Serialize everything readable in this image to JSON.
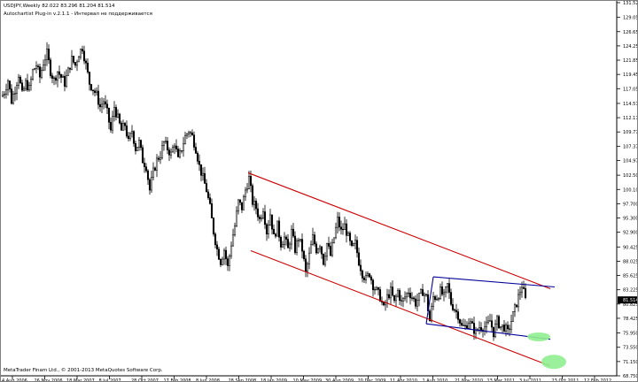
{
  "header": {
    "symbol_line": "USDJPY,Weekly  82.022 83.296 81.204 81.514",
    "indicator_line": "Autochartist Plug-in v.2.1.1 - Интервал не поддерживается"
  },
  "footer": {
    "copyright": "MetaTrader Finam Ltd., © 2001-2013 MetaQuotes Software Corp."
  },
  "current_price": "81.514",
  "colors": {
    "background": "#ffffff",
    "bull_candle": "#ffffff",
    "bear_candle": "#000000",
    "channel_lines": "#cc0000",
    "triangle_lines": "#000099",
    "target_ellipses": "#90ee90",
    "price_tag_bg": "#000000",
    "price_tag_fg": "#ffffff"
  },
  "chart_data": {
    "type": "candlestick",
    "title": "USDJPY,Weekly",
    "y_ticks": [
      "131.525",
      "129.050",
      "126.650",
      "124.250",
      "121.850",
      "119.450",
      "117.050",
      "114.575",
      "112.175",
      "109.775",
      "107.375",
      "104.975",
      "102.500",
      "100.100",
      "97.700",
      "95.300",
      "92.900",
      "90.425",
      "88.025",
      "85.625",
      "83.225",
      "80.825",
      "78.425",
      "75.950",
      "73.550",
      "71.150",
      "68.750"
    ],
    "ylim": [
      68.75,
      131.525
    ],
    "x_ticks": [
      "4 Aug 2006",
      "26 Nov 2006",
      "18 Mar 2007",
      "8 Jul 2007",
      "28 Oct 2007",
      "17 Feb 2008",
      "8 Jun 2008",
      "28 Sep 2008",
      "18 Jan 2009",
      "10 May 2009",
      "30 Aug 2009",
      "20 Dec 2009",
      "11 Apr 2010",
      "1 Aug 2010",
      "21 Nov 2010",
      "13 Mar 2011",
      "3 Jul 2011",
      "23 Oct 2011",
      "12 Feb 2012"
    ],
    "price_path": [
      [
        0,
        115.5
      ],
      [
        4,
        116.5
      ],
      [
        8,
        118.5
      ],
      [
        12,
        115
      ],
      [
        16,
        117
      ],
      [
        20,
        119.5
      ],
      [
        24,
        116
      ],
      [
        28,
        118
      ],
      [
        32,
        117
      ],
      [
        36,
        120
      ],
      [
        40,
        121
      ],
      [
        44,
        119
      ],
      [
        48,
        121.5
      ],
      [
        52,
        123
      ],
      [
        56,
        120
      ],
      [
        60,
        118.5
      ],
      [
        64,
        120
      ],
      [
        68,
        119
      ],
      [
        72,
        118
      ],
      [
        76,
        120
      ],
      [
        80,
        122
      ],
      [
        84,
        121
      ],
      [
        88,
        123
      ],
      [
        92,
        124
      ],
      [
        96,
        121
      ],
      [
        100,
        118
      ],
      [
        104,
        117
      ],
      [
        108,
        116
      ],
      [
        112,
        114
      ],
      [
        116,
        115
      ],
      [
        120,
        113
      ],
      [
        124,
        110
      ],
      [
        128,
        114
      ],
      [
        132,
        112
      ],
      [
        136,
        110
      ],
      [
        140,
        111
      ],
      [
        144,
        108
      ],
      [
        148,
        110
      ],
      [
        152,
        107
      ],
      [
        156,
        108
      ],
      [
        160,
        105
      ],
      [
        164,
        104
      ],
      [
        168,
        100
      ],
      [
        172,
        103
      ],
      [
        176,
        105
      ],
      [
        180,
        106
      ],
      [
        184,
        108
      ],
      [
        188,
        107
      ],
      [
        192,
        106
      ],
      [
        196,
        108
      ],
      [
        200,
        105
      ],
      [
        204,
        107
      ],
      [
        208,
        109
      ],
      [
        212,
        110
      ],
      [
        216,
        109
      ],
      [
        220,
        107
      ],
      [
        224,
        104
      ],
      [
        228,
        102
      ],
      [
        232,
        100
      ],
      [
        236,
        97
      ],
      [
        240,
        93
      ],
      [
        244,
        90
      ],
      [
        248,
        88
      ],
      [
        252,
        90
      ],
      [
        256,
        87
      ],
      [
        260,
        91
      ],
      [
        264,
        94
      ],
      [
        268,
        98
      ],
      [
        272,
        97
      ],
      [
        276,
        100
      ],
      [
        280,
        102
      ],
      [
        284,
        98
      ],
      [
        288,
        97
      ],
      [
        292,
        95
      ],
      [
        296,
        97
      ],
      [
        300,
        93
      ],
      [
        304,
        96
      ],
      [
        308,
        92
      ],
      [
        312,
        94
      ],
      [
        316,
        91
      ],
      [
        320,
        92
      ],
      [
        324,
        90
      ],
      [
        328,
        93
      ],
      [
        332,
        90
      ],
      [
        336,
        92
      ],
      [
        340,
        90
      ],
      [
        344,
        86
      ],
      [
        348,
        89
      ],
      [
        352,
        92
      ],
      [
        356,
        90
      ],
      [
        360,
        91
      ],
      [
        364,
        88
      ],
      [
        368,
        91
      ],
      [
        372,
        89
      ],
      [
        376,
        92
      ],
      [
        380,
        95
      ],
      [
        384,
        93
      ],
      [
        388,
        94
      ],
      [
        392,
        92
      ],
      [
        396,
        90
      ],
      [
        400,
        91
      ],
      [
        404,
        88
      ],
      [
        408,
        86
      ],
      [
        412,
        85
      ],
      [
        416,
        86
      ],
      [
        420,
        84
      ],
      [
        424,
        83
      ],
      [
        428,
        82
      ],
      [
        432,
        80
      ],
      [
        436,
        82
      ],
      [
        440,
        83
      ],
      [
        444,
        81
      ],
      [
        448,
        83
      ],
      [
        452,
        81
      ],
      [
        456,
        82
      ],
      [
        460,
        83
      ],
      [
        464,
        82
      ],
      [
        468,
        81
      ],
      [
        472,
        82
      ],
      [
        476,
        83
      ],
      [
        480,
        82
      ],
      [
        484,
        78
      ],
      [
        488,
        82
      ],
      [
        492,
        82
      ],
      [
        496,
        83
      ],
      [
        500,
        82
      ],
      [
        504,
        84
      ],
      [
        508,
        81
      ],
      [
        512,
        80
      ],
      [
        516,
        79
      ],
      [
        520,
        77
      ],
      [
        524,
        77
      ],
      [
        528,
        78
      ],
      [
        532,
        77
      ],
      [
        536,
        76
      ],
      [
        540,
        77
      ],
      [
        544,
        77
      ],
      [
        548,
        77
      ],
      [
        552,
        78
      ],
      [
        556,
        76
      ],
      [
        560,
        78
      ],
      [
        564,
        77
      ],
      [
        568,
        77
      ],
      [
        572,
        76
      ],
      [
        576,
        78
      ],
      [
        580,
        80
      ],
      [
        584,
        82
      ],
      [
        588,
        84
      ],
      [
        592,
        81.5
      ]
    ],
    "channel_upper": [
      [
        279,
        102.9
      ],
      [
        620,
        83.4
      ]
    ],
    "channel_lower": [
      [
        282,
        89.8
      ],
      [
        620,
        70.4
      ]
    ],
    "triangle_upper": [
      [
        488,
        85.4
      ],
      [
        625,
        83.7
      ]
    ],
    "triangle_lower": [
      [
        480,
        77.5
      ],
      [
        620,
        74.9
      ]
    ],
    "triangle_left": [
      [
        488,
        85.4
      ],
      [
        480,
        77.5
      ]
    ],
    "targets": [
      {
        "name": "target-1",
        "x": 607,
        "y": 75.3
      },
      {
        "name": "target-2",
        "x": 624,
        "y": 71.1
      }
    ],
    "grid": false,
    "legend": "none"
  }
}
